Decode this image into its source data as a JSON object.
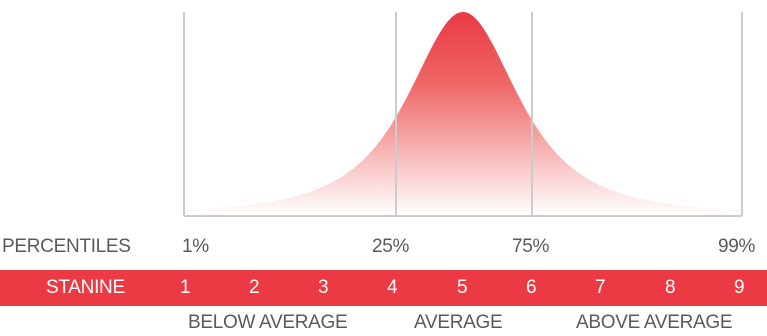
{
  "percentiles": {
    "label": "PERCENTILES",
    "values": [
      "1%",
      "25%",
      "75%",
      "99%"
    ]
  },
  "stanine": {
    "label": "STANINE",
    "values": [
      "1",
      "2",
      "3",
      "4",
      "5",
      "6",
      "7",
      "8",
      "9"
    ]
  },
  "categories": [
    "BELOW AVERAGE",
    "AVERAGE",
    "ABOVE AVERAGE"
  ],
  "colors": {
    "band": "#ec3a44",
    "curve_top": "#e93a44",
    "curve_bottom": "#ffffff",
    "gridline": "#cccccc",
    "text": "#5a5a5a"
  }
}
